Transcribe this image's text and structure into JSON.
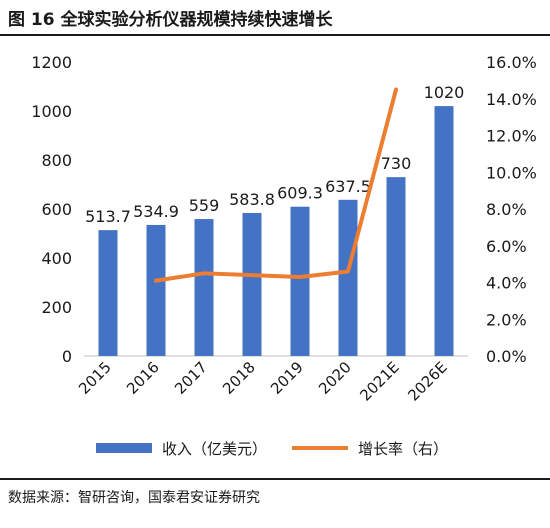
{
  "title": "图 16 全球实验分析仪器规模持续快速增长",
  "source": "数据来源：智研咨询，国泰君安证券研究",
  "colors": {
    "bar": "#4472c4",
    "line": "#ed7d31",
    "axis": "#bfbfbf",
    "text": "#1a1a1a"
  },
  "chart_data": {
    "type": "bar",
    "categories": [
      "2015",
      "2016",
      "2017",
      "2018",
      "2019",
      "2020",
      "2021E",
      "2026E"
    ],
    "series": [
      {
        "name": "收入（亿美元）",
        "type": "bar",
        "axis": "left",
        "values": [
          513.7,
          534.9,
          559,
          583.8,
          609.3,
          637.5,
          730,
          1020
        ],
        "labels": [
          "513.7",
          "534.9",
          "559",
          "583.8",
          "609.3",
          "637.5",
          "730",
          "1020"
        ]
      },
      {
        "name": "增长率（右）",
        "type": "line",
        "axis": "right",
        "values": [
          null,
          4.1,
          4.5,
          4.4,
          4.3,
          4.6,
          14.5,
          null
        ]
      }
    ],
    "y_left": {
      "min": 0,
      "max": 1200,
      "ticks": [
        "0",
        "200",
        "400",
        "600",
        "800",
        "1000",
        "1200"
      ]
    },
    "y_right": {
      "min": 0,
      "max": 16,
      "ticks": [
        "0.0%",
        "2.0%",
        "4.0%",
        "6.0%",
        "8.0%",
        "10.0%",
        "12.0%",
        "14.0%",
        "16.0%"
      ]
    },
    "grid": false,
    "legend": "bottom"
  }
}
